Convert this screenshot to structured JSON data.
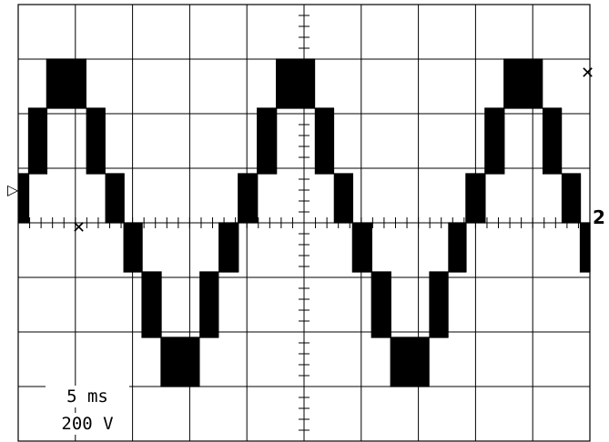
{
  "chart_data": {
    "type": "line",
    "title": "",
    "xlabel": "",
    "ylabel": "",
    "grid": true,
    "grid_divisions": {
      "x": 10,
      "y": 8
    },
    "x_scale_per_div": "5 ms",
    "y_scale_per_div": "200 V",
    "xlim_ms": [
      0,
      50
    ],
    "ylim_V": [
      -800,
      800
    ],
    "period_ms": 20,
    "series": [
      {
        "name": "",
        "description": "multilevel stepped PWM line voltage",
        "step_levels_V": [
          0,
          180,
          420,
          600
        ],
        "x_ms": [
          0,
          0.8,
          1.6,
          2.8,
          4.0,
          5.2,
          6.8,
          8.0,
          9.6,
          11.2,
          12.4,
          14.0,
          15.2,
          16.4,
          17.6,
          18.8,
          19.2
        ],
        "y_V": [
          -420,
          -560,
          -420,
          -180,
          0,
          180,
          420,
          590,
          590,
          420,
          180,
          0,
          -180,
          -420,
          -590,
          -590,
          -420
        ]
      }
    ]
  },
  "markers": {
    "ground_marker": "▷",
    "trigger_marker": "✕",
    "channel_marker": "2"
  },
  "readouts": {
    "time_div": "5 ms",
    "volt_div": "200 V"
  }
}
